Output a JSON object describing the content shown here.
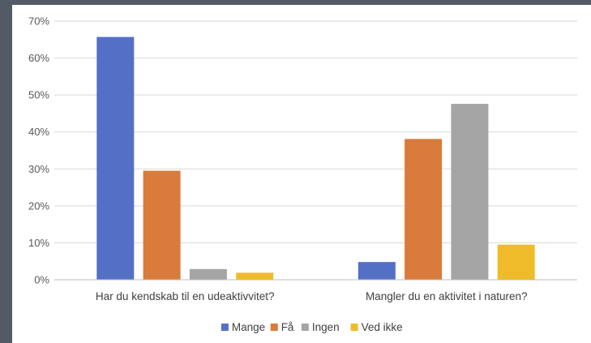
{
  "chart_data": {
    "type": "bar",
    "title": "",
    "xlabel": "",
    "ylabel": "",
    "categories": [
      "Har du kendskab til en udeaktivvitet?",
      "Mangler du en aktivitet i naturen?"
    ],
    "series": [
      {
        "name": "Mange",
        "color": "#5470c6",
        "values": [
          65.7,
          4.8
        ]
      },
      {
        "name": "Få",
        "color": "#d97b3a",
        "values": [
          29.5,
          38.1
        ]
      },
      {
        "name": "Ingen",
        "color": "#a5a5a5",
        "values": [
          2.9,
          47.6
        ]
      },
      {
        "name": "Ved ikke",
        "color": "#f0bb2a",
        "values": [
          1.9,
          9.5
        ]
      }
    ],
    "ylim": [
      0,
      70
    ],
    "yticks": [
      0,
      10,
      20,
      30,
      40,
      50,
      60,
      70
    ],
    "ytick_labels": [
      "0%",
      "10%",
      "20%",
      "30%",
      "40%",
      "50%",
      "60%",
      "70%"
    ],
    "grid": true,
    "legend_position": "bottom",
    "colors": {
      "gridline": "#d9d9d9",
      "axis": "#bfbfbf",
      "background": "#ffffff",
      "frame": "#525a66"
    }
  }
}
